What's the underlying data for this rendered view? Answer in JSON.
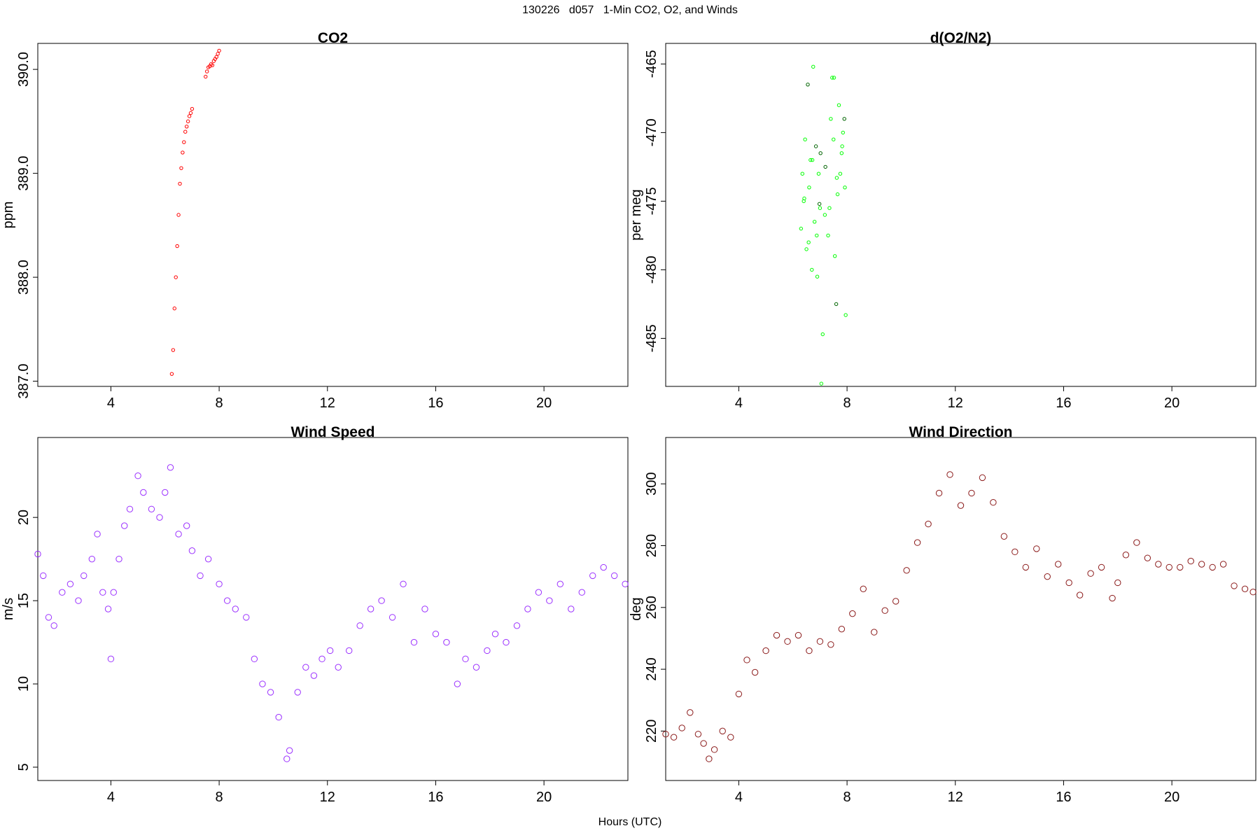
{
  "figure_title": "130226   d057   1-Min CO2, O2, and Winds",
  "x_axis_label": "Hours (UTC)",
  "chart_data": [
    {
      "type": "scatter",
      "title": "CO2",
      "xlabel": "",
      "ylabel": "ppm",
      "xlim": [
        1.3,
        23.1
      ],
      "ylim": [
        386.95,
        390.25
      ],
      "xticks": [
        4,
        8,
        12,
        16,
        20
      ],
      "yticks": [
        387.0,
        388.0,
        389.0,
        390.0
      ],
      "ytick_labels": [
        "387.0",
        "388.0",
        "389.0",
        "390.0"
      ],
      "color": "#ff0000",
      "marker_size": "small",
      "series": [
        {
          "x": [
            6.25,
            6.3,
            6.35,
            6.4,
            6.45,
            6.5,
            6.55,
            6.6,
            6.65,
            6.7,
            6.75,
            6.8,
            6.85,
            6.9,
            6.95,
            7.0,
            7.5,
            7.55,
            7.6,
            7.65,
            7.7,
            7.75,
            7.8,
            7.85,
            7.9,
            7.95,
            8.0
          ],
          "y": [
            387.07,
            387.3,
            387.7,
            388.0,
            388.3,
            388.6,
            388.9,
            389.05,
            389.2,
            389.3,
            389.4,
            389.45,
            389.5,
            389.55,
            389.58,
            389.62,
            389.93,
            389.98,
            390.02,
            390.03,
            390.05,
            390.04,
            390.08,
            390.1,
            390.12,
            390.15,
            390.18
          ]
        }
      ]
    },
    {
      "type": "scatter",
      "title": "d(O2/N2)",
      "xlabel": "",
      "ylabel": "per meg",
      "xlim": [
        1.3,
        23.1
      ],
      "ylim": [
        -488.5,
        -463.5
      ],
      "xticks": [
        4,
        8,
        12,
        16,
        20
      ],
      "yticks": [
        -485,
        -480,
        -475,
        -470,
        -465
      ],
      "ytick_labels": [
        "-485",
        "-480",
        "-475",
        "-470",
        "-465"
      ],
      "color": "#00ff00",
      "secondary_color": "#006400",
      "marker_size": "small",
      "series": [
        {
          "x": [
            6.3,
            6.35,
            6.4,
            6.45,
            6.5,
            6.55,
            6.6,
            6.65,
            6.7,
            6.75,
            6.8,
            6.85,
            6.9,
            6.95,
            7.0,
            7.05,
            7.1,
            7.2,
            7.3,
            7.4,
            7.45,
            7.5,
            7.55,
            7.6,
            7.65,
            7.7,
            7.75,
            7.8,
            7.85,
            7.9,
            7.95,
            6.42,
            6.58,
            6.72,
            6.88,
            7.02,
            7.18,
            7.35,
            7.62,
            7.82,
            7.92,
            6.98,
            7.52
          ],
          "y": [
            -477.0,
            -473.0,
            -475.0,
            -470.5,
            -478.5,
            -466.5,
            -474.0,
            -472.0,
            -480.0,
            -465.2,
            -476.5,
            -471.0,
            -480.5,
            -473.0,
            -475.5,
            -488.3,
            -484.7,
            -472.5,
            -477.5,
            -469.0,
            -466.0,
            -470.5,
            -479.0,
            -482.5,
            -474.5,
            -468.0,
            -473.0,
            -471.5,
            -470.0,
            -469.0,
            -483.3,
            -474.8,
            -478.0,
            -472.0,
            -477.5,
            -471.5,
            -476.0,
            -475.5,
            -473.3,
            -471.0,
            -474.0,
            -475.2,
            -466.0
          ]
        }
      ]
    },
    {
      "type": "scatter",
      "title": "Wind Speed",
      "xlabel": "",
      "ylabel": "m/s",
      "xlim": [
        1.3,
        23.1
      ],
      "ylim": [
        4.2,
        24.8
      ],
      "xticks": [
        4,
        8,
        12,
        16,
        20
      ],
      "yticks": [
        5,
        10,
        15,
        20
      ],
      "ytick_labels": [
        "5",
        "10",
        "15",
        "20"
      ],
      "color": "#9b30ff",
      "marker_size": "large",
      "series": [
        {
          "x": [
            1.3,
            1.5,
            1.7,
            1.9,
            2.2,
            2.5,
            2.8,
            3.0,
            3.3,
            3.5,
            3.7,
            3.9,
            4.0,
            4.1,
            4.3,
            4.5,
            4.7,
            5.0,
            5.2,
            5.5,
            5.8,
            6.0,
            6.2,
            6.5,
            6.8,
            7.0,
            7.3,
            7.6,
            8.0,
            8.3,
            8.6,
            9.0,
            9.3,
            9.6,
            9.9,
            10.2,
            10.5,
            10.6,
            10.9,
            11.2,
            11.5,
            11.8,
            12.1,
            12.4,
            12.8,
            13.2,
            13.6,
            14.0,
            14.4,
            14.8,
            15.2,
            15.6,
            16.0,
            16.4,
            16.8,
            17.1,
            17.5,
            17.9,
            18.2,
            18.6,
            19.0,
            19.4,
            19.8,
            20.2,
            20.6,
            21.0,
            21.4,
            21.8,
            22.2,
            22.6,
            23.0
          ],
          "y": [
            17.8,
            16.5,
            14.0,
            13.5,
            15.5,
            16.0,
            15.0,
            16.5,
            17.5,
            19.0,
            15.5,
            14.5,
            11.5,
            15.5,
            17.5,
            19.5,
            20.5,
            22.5,
            21.5,
            20.5,
            20.0,
            21.5,
            23.0,
            19.0,
            19.5,
            18.0,
            16.5,
            17.5,
            16.0,
            15.0,
            14.5,
            14.0,
            11.5,
            10.0,
            9.5,
            8.0,
            5.5,
            6.0,
            9.5,
            11.0,
            10.5,
            11.5,
            12.0,
            11.0,
            12.0,
            13.5,
            14.5,
            15.0,
            14.0,
            16.0,
            12.5,
            14.5,
            13.0,
            12.5,
            10.0,
            11.5,
            11.0,
            12.0,
            13.0,
            12.5,
            13.5,
            14.5,
            15.5,
            15.0,
            16.0,
            14.5,
            15.5,
            16.5,
            17.0,
            16.5,
            16.0
          ]
        }
      ]
    },
    {
      "type": "scatter",
      "title": "Wind Direction",
      "xlabel": "",
      "ylabel": "deg",
      "xlim": [
        1.3,
        23.1
      ],
      "ylim": [
        204,
        315
      ],
      "xticks": [
        4,
        8,
        12,
        16,
        20
      ],
      "yticks": [
        220,
        240,
        260,
        280,
        300
      ],
      "ytick_labels": [
        "220",
        "240",
        "260",
        "280",
        "300"
      ],
      "color": "#8b1a1a",
      "marker_size": "large",
      "series": [
        {
          "x": [
            1.3,
            1.6,
            1.9,
            2.2,
            2.5,
            2.7,
            2.9,
            3.1,
            3.4,
            3.7,
            4.0,
            4.3,
            4.6,
            5.0,
            5.4,
            5.8,
            6.2,
            6.6,
            7.0,
            7.4,
            7.8,
            8.2,
            8.6,
            9.0,
            9.4,
            9.8,
            10.2,
            10.6,
            11.0,
            11.4,
            11.8,
            12.2,
            12.6,
            13.0,
            13.4,
            13.8,
            14.2,
            14.6,
            15.0,
            15.4,
            15.8,
            16.2,
            16.6,
            17.0,
            17.4,
            17.8,
            18.0,
            18.3,
            18.7,
            19.1,
            19.5,
            19.9,
            20.3,
            20.7,
            21.1,
            21.5,
            21.9,
            22.3,
            22.7,
            23.0
          ],
          "y": [
            219,
            218,
            221,
            226,
            219,
            216,
            211,
            214,
            220,
            218,
            232,
            243,
            239,
            246,
            251,
            249,
            251,
            246,
            249,
            248,
            253,
            258,
            266,
            252,
            259,
            262,
            272,
            281,
            287,
            297,
            303,
            293,
            297,
            302,
            294,
            283,
            278,
            273,
            279,
            270,
            274,
            268,
            264,
            271,
            273,
            263,
            268,
            277,
            281,
            276,
            274,
            273,
            273,
            275,
            274,
            273,
            274,
            267,
            266,
            265
          ]
        }
      ]
    }
  ]
}
